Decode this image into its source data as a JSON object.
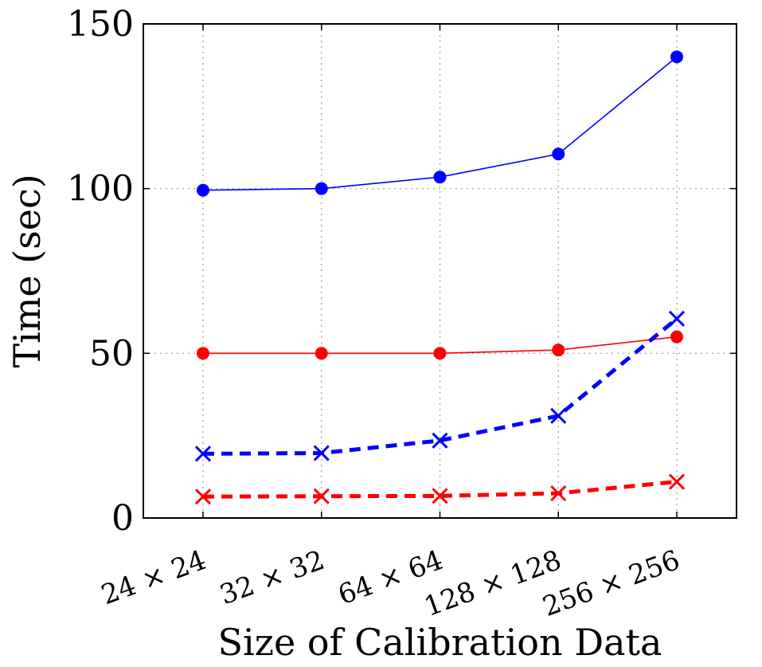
{
  "chart_data": {
    "type": "line",
    "title": "",
    "xlabel": "Size of Calibration Data",
    "ylabel": "Time (sec)",
    "categories": [
      "24 × 24",
      "32 × 32",
      "64 × 64",
      "128 × 128",
      "256 × 256"
    ],
    "ylim": [
      0,
      150
    ],
    "yticks": [
      "0",
      "50",
      "100",
      "150"
    ],
    "grid": true,
    "legend": "none",
    "series": [
      {
        "color": "#0000ff",
        "line": "solid",
        "marker": "circle",
        "values": [
          99.5,
          100,
          103.5,
          110.5,
          140
        ]
      },
      {
        "color": "#ff0000",
        "line": "solid",
        "marker": "circle",
        "values": [
          50,
          50,
          50,
          51,
          55
        ]
      },
      {
        "color": "#0000ff",
        "line": "dashed",
        "marker": "x",
        "values": [
          19.5,
          19.7,
          23.5,
          31,
          60.5
        ]
      },
      {
        "color": "#ff0000",
        "line": "dashed",
        "marker": "x",
        "values": [
          6.5,
          6.6,
          6.7,
          7.5,
          11
        ]
      }
    ]
  }
}
